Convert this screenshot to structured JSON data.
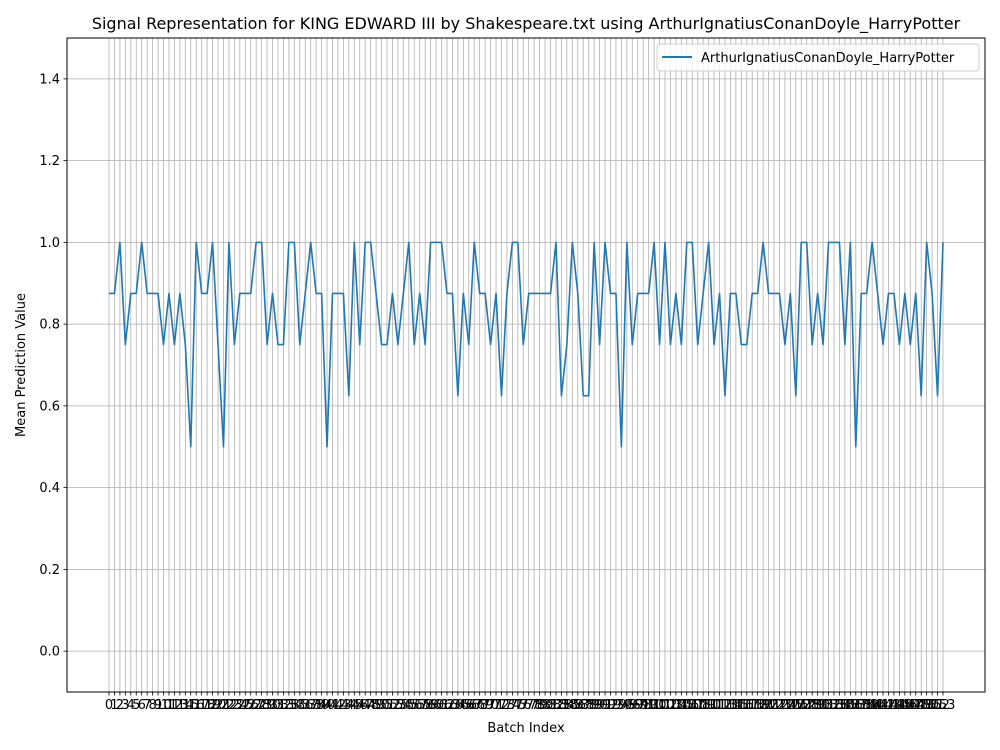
{
  "chart_data": {
    "type": "line",
    "title": "Signal Representation for KING EDWARD III by Shakespeare.txt using ArthurIgnatiusConanDoyle_HarryPotter",
    "xlabel": "Batch Index",
    "ylabel": "Mean Prediction Value",
    "xlim": [
      0,
      153
    ],
    "ylim": [
      -0.1,
      1.5
    ],
    "yticks": [
      0.0,
      0.2,
      0.4,
      0.6,
      0.8,
      1.0,
      1.2,
      1.4
    ],
    "ytick_labels": [
      "0.0",
      "0.2",
      "0.4",
      "0.6",
      "0.8",
      "1.0",
      "1.2",
      "1.4"
    ],
    "xtick_step": 1,
    "grid": true,
    "legend_position": "top-right",
    "series": [
      {
        "name": "ArthurIgnatiusConanDoyle_HarryPotter",
        "color": "#1f77b4",
        "values": [
          0.875,
          0.875,
          1.0,
          0.75,
          0.875,
          0.875,
          1.0,
          0.875,
          0.875,
          0.875,
          0.75,
          0.875,
          0.75,
          0.875,
          0.75,
          0.5,
          1.0,
          0.875,
          0.875,
          1.0,
          0.75,
          0.5,
          1.0,
          0.75,
          0.875,
          0.875,
          0.875,
          1.0,
          1.0,
          0.75,
          0.875,
          0.75,
          0.75,
          1.0,
          1.0,
          0.75,
          0.875,
          1.0,
          0.875,
          0.875,
          0.5,
          0.875,
          0.875,
          0.875,
          0.625,
          1.0,
          0.75,
          1.0,
          1.0,
          0.875,
          0.75,
          0.75,
          0.875,
          0.75,
          0.875,
          1.0,
          0.75,
          0.875,
          0.75,
          1.0,
          1.0,
          1.0,
          0.875,
          0.875,
          0.625,
          0.875,
          0.75,
          1.0,
          0.875,
          0.875,
          0.75,
          0.875,
          0.625,
          0.875,
          1.0,
          1.0,
          0.75,
          0.875,
          0.875,
          0.875,
          0.875,
          0.875,
          1.0,
          0.625,
          0.75,
          1.0,
          0.875,
          0.625,
          0.625,
          1.0,
          0.75,
          1.0,
          0.875,
          0.875,
          0.5,
          1.0,
          0.75,
          0.875,
          0.875,
          0.875,
          1.0,
          0.75,
          1.0,
          0.75,
          0.875,
          0.75,
          1.0,
          1.0,
          0.75,
          0.875,
          1.0,
          0.75,
          0.875,
          0.625,
          0.875,
          0.875,
          0.75,
          0.75,
          0.875,
          0.875,
          1.0,
          0.875,
          0.875,
          0.875,
          0.75,
          0.875,
          0.625,
          1.0,
          1.0,
          0.75,
          0.875,
          0.75,
          1.0,
          1.0,
          1.0,
          0.75,
          1.0,
          0.5,
          0.875,
          0.875,
          1.0,
          0.875,
          0.75,
          0.875,
          0.875,
          0.75,
          0.875,
          0.75,
          0.875,
          0.625,
          1.0,
          0.875,
          0.625,
          1.0
        ]
      }
    ]
  }
}
